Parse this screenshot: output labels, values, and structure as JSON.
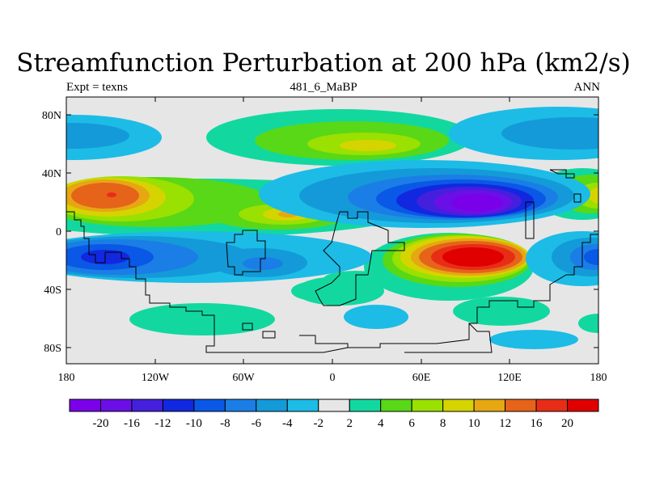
{
  "chart_data": {
    "type": "contour_map",
    "title": "Streamfunction Perturbation at 200 hPa (km2/s)",
    "left_label": "Expt = texns",
    "center_label": "481_6_MaBP",
    "right_label": "ANN",
    "x_ticks": [
      "180",
      "120W",
      "60W",
      "0",
      "60E",
      "120E",
      "180"
    ],
    "y_ticks": [
      "80N",
      "40N",
      "0",
      "40S",
      "80S"
    ],
    "colorbar_labels": [
      "-20",
      "-16",
      "-12",
      "-10",
      "-8",
      "-6",
      "-4",
      "-2",
      "2",
      "4",
      "6",
      "8",
      "10",
      "12",
      "16",
      "20"
    ],
    "colorbar_colors": [
      "#7b00ea",
      "#6a10e6",
      "#4420dd",
      "#1228e0",
      "#0a58e6",
      "#1a7ee6",
      "#149ad8",
      "#1cbce6",
      "#e6e6e6",
      "#12d8a0",
      "#58d817",
      "#9ae000",
      "#d6d400",
      "#e6a712",
      "#e6631a",
      "#e82d16",
      "#e00000"
    ],
    "features": [
      {
        "label": "positive high (orange)",
        "lon": -140,
        "lat": 24,
        "level": 12
      },
      {
        "label": "negative low (violet)",
        "lon": 95,
        "lat": 25,
        "level": -20
      },
      {
        "label": "positive high (red)",
        "lon": 95,
        "lat": -17,
        "level": 20
      },
      {
        "label": "negative low (blue)",
        "lon": -145,
        "lat": -17,
        "level": -10
      },
      {
        "label": "positive (NH high-lat)",
        "lon": 30,
        "lat": 60,
        "level": 8
      },
      {
        "label": "positive (east Pacific)",
        "lon": -35,
        "lat": 12,
        "level": 10
      }
    ]
  }
}
